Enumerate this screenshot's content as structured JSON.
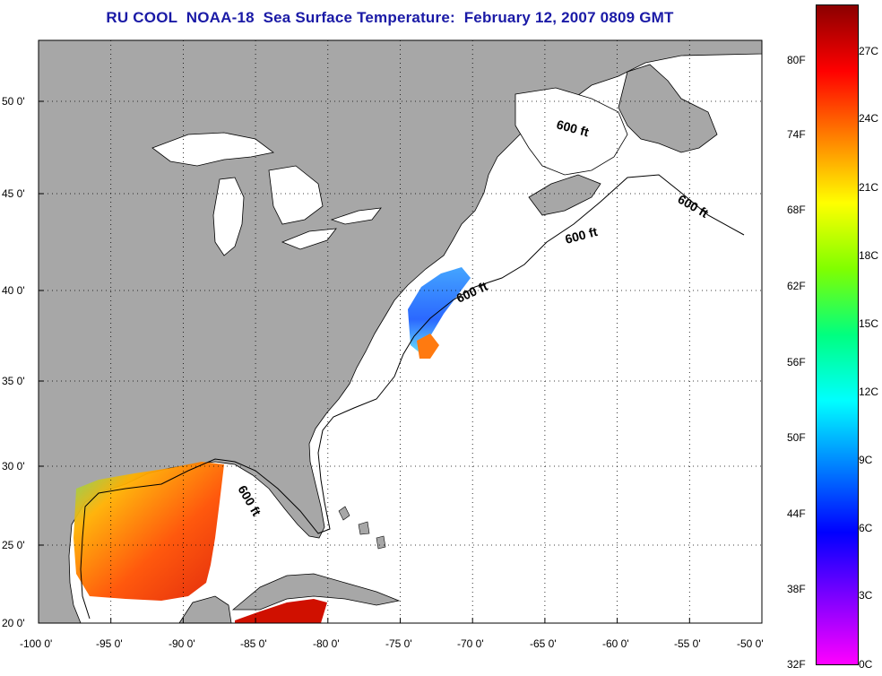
{
  "title": "RU COOL  NOAA-18  Sea Surface Temperature:  February 12, 2007 0809 GMT",
  "map": {
    "lon_ticks": [
      "-100 0'",
      "-95 0'",
      "-90 0'",
      "-85 0'",
      "-80 0'",
      "-75 0'",
      "-70 0'",
      "-65 0'",
      "-60 0'",
      "-55 0'",
      "-50 0'"
    ],
    "lat_ticks": [
      "50 0'",
      "45 0'",
      "40 0'",
      "35 0'",
      "30 0'",
      "25 0'",
      "20 0'"
    ],
    "contour_label": "600 ft",
    "colors": {
      "land": "#a7a7a7",
      "water": "#ffffff",
      "coast": "#000000"
    }
  },
  "colorbar": {
    "fahrenheit": [
      "80F",
      "74F",
      "68F",
      "62F",
      "56F",
      "50F",
      "44F",
      "38F",
      "32F"
    ],
    "celsius": [
      "27C",
      "24C",
      "21C",
      "18C",
      "15C",
      "12C",
      "9C",
      "6C",
      "3C",
      "0C"
    ],
    "gradient_stops": [
      "#ff00ff",
      "#8000ff",
      "#0000ff",
      "#0080ff",
      "#00ffff",
      "#00ff80",
      "#80ff00",
      "#ffff00",
      "#ff8000",
      "#ff0000",
      "#8b0000"
    ]
  }
}
